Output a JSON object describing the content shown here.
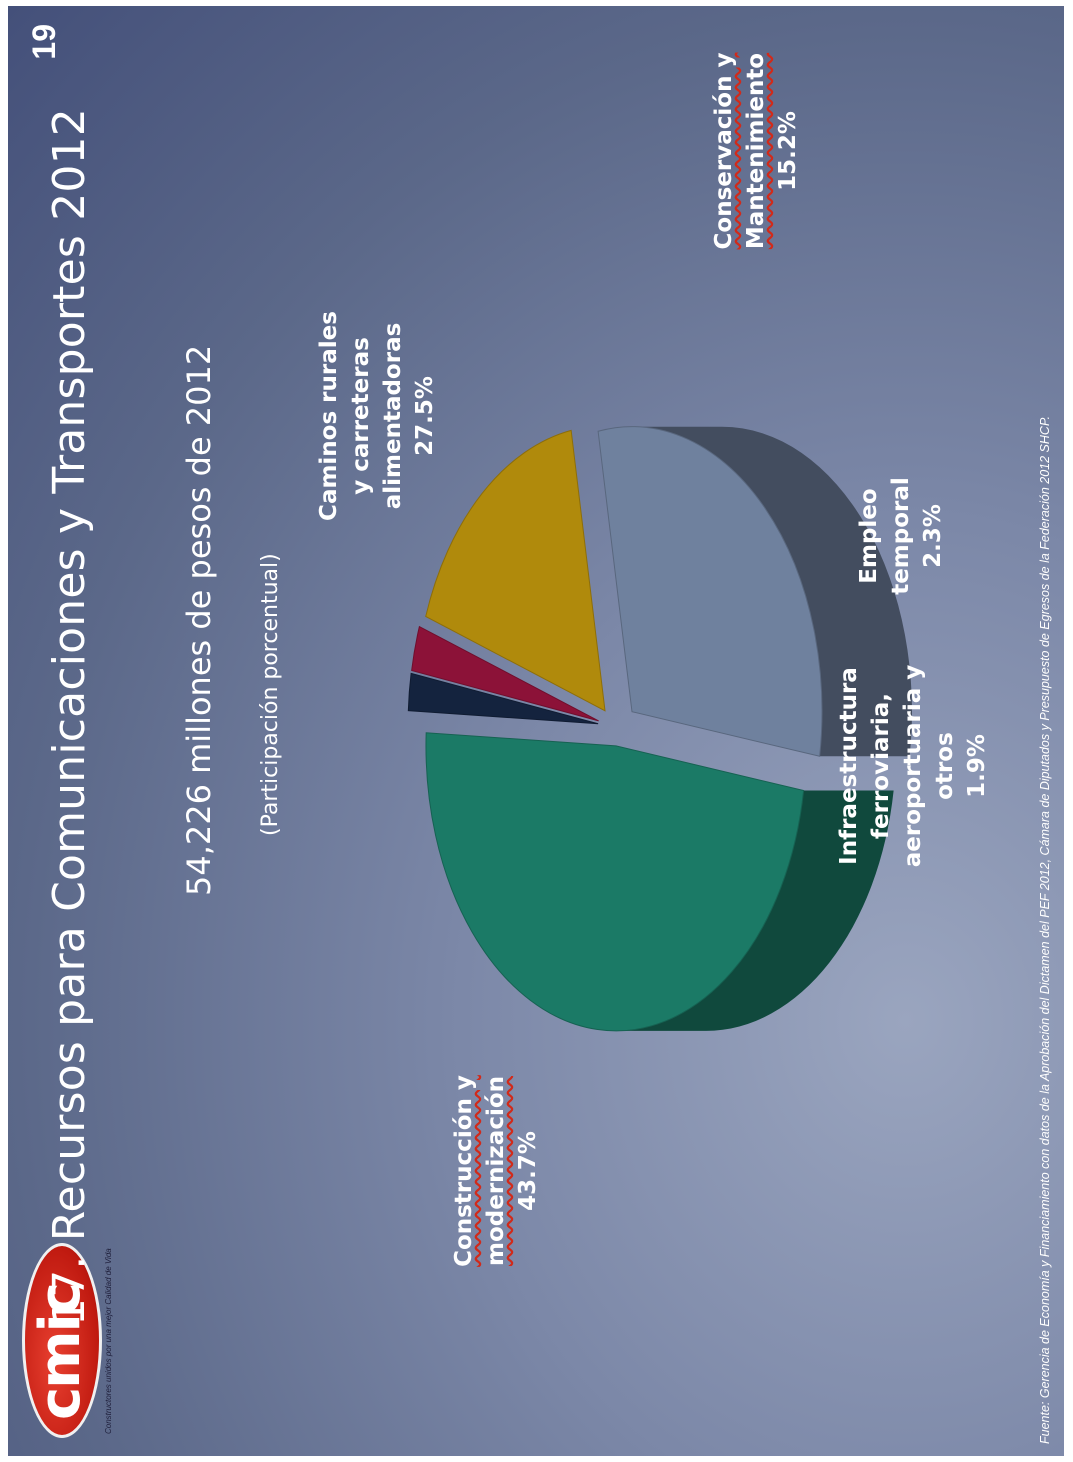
{
  "logo": {
    "text": "cmic",
    "tagline": "Constructores unidos por una mejor Calidad de Vida"
  },
  "slide_number": "19",
  "title": "17.  Recursos para Comunicaciones y Transportes 2012",
  "subtitle": "54,226 millones de pesos de 2012",
  "subnote": "(Participación porcentual)",
  "source": "Fuente: Gerencia de Economía y Financiamiento con datos de la Aprobación del Dictamen del PEF 2012, Cámara de Diputados y Presupuesto de Egresos de la Federación 2012 SHCP.",
  "chart_data": {
    "type": "pie",
    "title": "",
    "slices": [
      {
        "label": "Construcción y modernización",
        "value": 43.7,
        "display": "43.7%",
        "color": "#1b7a66",
        "underline": true
      },
      {
        "label": "Infraestructura ferroviaria, aeroportuaria y otros",
        "value": 1.9,
        "display": "1.9%",
        "color": "#14233e",
        "underline": false
      },
      {
        "label": "Empleo temporal",
        "value": 2.3,
        "display": "2.3%",
        "color": "#8c1238",
        "underline": false
      },
      {
        "label": "Conservación y Mantenimiento",
        "value": 15.2,
        "display": "15.2%",
        "color": "#b08a0c",
        "underline": true
      },
      {
        "label": "Caminos rurales y carreteras alimentadoras",
        "value": 27.5,
        "display": "27.5%",
        "color": "#6f819e",
        "underline": false
      }
    ]
  }
}
